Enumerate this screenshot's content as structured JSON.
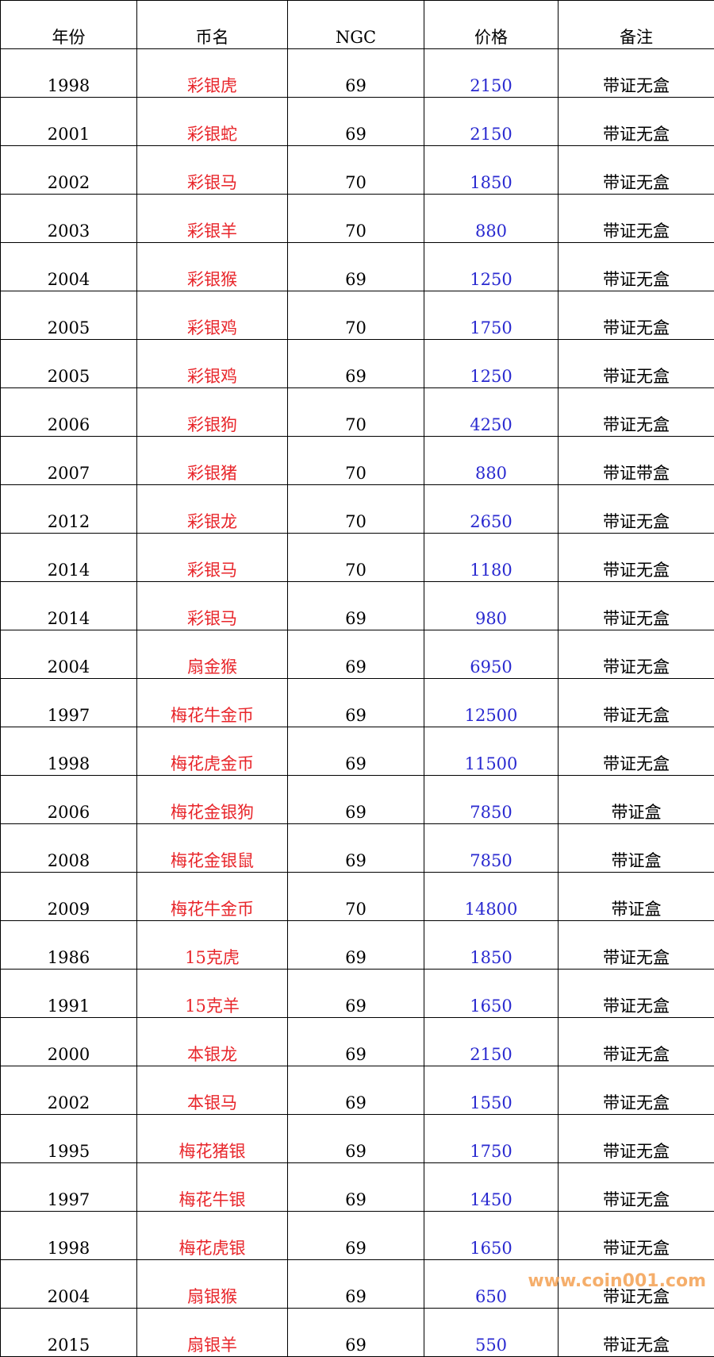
{
  "headers": [
    "年份",
    "币名",
    "NGC",
    "价格",
    "备注"
  ],
  "rows": [
    [
      "1998",
      "彩银虎",
      "69",
      "2150",
      "带证无盒"
    ],
    [
      "2001",
      "彩银蛇",
      "69",
      "2150",
      "带证无盒"
    ],
    [
      "2002",
      "彩银马",
      "70",
      "1850",
      "带证无盒"
    ],
    [
      "2003",
      "彩银羊",
      "70",
      "880",
      "带证无盒"
    ],
    [
      "2004",
      "彩银猴",
      "69",
      "1250",
      "带证无盒"
    ],
    [
      "2005",
      "彩银鸡",
      "70",
      "1750",
      "带证无盒"
    ],
    [
      "2005",
      "彩银鸡",
      "69",
      "1250",
      "带证无盒"
    ],
    [
      "2006",
      "彩银狗",
      "70",
      "4250",
      "带证无盒"
    ],
    [
      "2007",
      "彩银猪",
      "70",
      "880",
      "带证带盒"
    ],
    [
      "2012",
      "彩银龙",
      "70",
      "2650",
      "带证无盒"
    ],
    [
      "2014",
      "彩银马",
      "70",
      "1180",
      "带证无盒"
    ],
    [
      "2014",
      "彩银马",
      "69",
      "980",
      "带证无盒"
    ],
    [
      "2004",
      "扇金猴",
      "69",
      "6950",
      "带证无盒"
    ],
    [
      "1997",
      "梅花牛金币",
      "69",
      "12500",
      "带证无盒"
    ],
    [
      "1998",
      "梅花虎金币",
      "69",
      "11500",
      "带证无盒"
    ],
    [
      "2006",
      "梅花金银狗",
      "69",
      "7850",
      "带证盒"
    ],
    [
      "2008",
      "梅花金银鼠",
      "69",
      "7850",
      "带证盒"
    ],
    [
      "2009",
      "梅花牛金币",
      "70",
      "14800",
      "带证盒"
    ],
    [
      "1986",
      "15克虎",
      "69",
      "1850",
      "带证无盒"
    ],
    [
      "1991",
      "15克羊",
      "69",
      "1650",
      "带证无盒"
    ],
    [
      "2000",
      "本银龙",
      "69",
      "2150",
      "带证无盒"
    ],
    [
      "2002",
      "本银马",
      "69",
      "1550",
      "带证无盒"
    ],
    [
      "1995",
      "梅花猪银",
      "69",
      "1750",
      "带证无盒"
    ],
    [
      "1997",
      "梅花牛银",
      "69",
      "1450",
      "带证无盒"
    ],
    [
      "1998",
      "梅花虎银",
      "69",
      "1650",
      "带证无盒"
    ],
    [
      "2004",
      "扇银猴",
      "69",
      "650",
      "带证无盒"
    ],
    [
      "2015",
      "扇银羊",
      "69",
      "550",
      "带证无盒"
    ]
  ],
  "colors": {
    "name": "#e8262b",
    "price": "#2a2ad0",
    "watermark": "#f5a65b"
  },
  "watermark": "www.coin001.com"
}
